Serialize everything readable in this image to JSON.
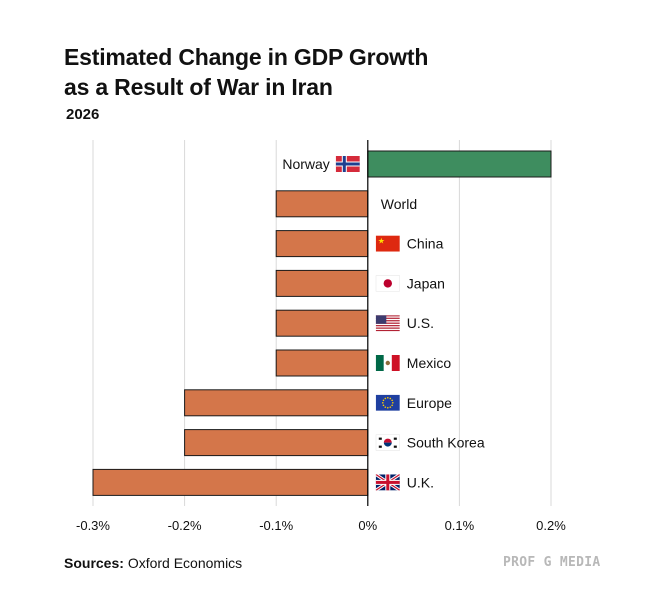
{
  "title": {
    "line1": "Estimated Change in GDP Growth",
    "line2": "as a Result of War in Iran"
  },
  "subtitle": "2026",
  "footer": {
    "sources_label": "Sources:",
    "sources_text": "Oxford Economics",
    "brand": "PROF G MEDIA"
  },
  "colors": {
    "positive": "#3e8d5f",
    "negative": "#d4764a",
    "grid": "#d9d9d9",
    "zero_line": "#000000"
  },
  "chart_data": {
    "type": "bar",
    "orientation": "horizontal",
    "title": "Estimated Change in GDP Growth as a Result of War in Iran",
    "subtitle": "2026",
    "xlabel": "",
    "ylabel": "",
    "xlim": [
      -0.3,
      0.2
    ],
    "xticks": [
      -0.3,
      -0.2,
      -0.1,
      0,
      0.1,
      0.2
    ],
    "xtick_labels": [
      "-0.3%",
      "-0.2%",
      "-0.1%",
      "0%",
      "0.1%",
      "0.2%"
    ],
    "grid": true,
    "categories": [
      "Norway",
      "World",
      "China",
      "Japan",
      "U.S.",
      "Mexico",
      "Europe",
      "South Korea",
      "U.K."
    ],
    "flags": [
      "norway-flag",
      "",
      "china-flag",
      "japan-flag",
      "us-flag",
      "mexico-flag",
      "eu-flag",
      "south-korea-flag",
      "uk-flag"
    ],
    "values": [
      0.2,
      -0.1,
      -0.1,
      -0.1,
      -0.1,
      -0.1,
      -0.2,
      -0.2,
      -0.3
    ]
  }
}
